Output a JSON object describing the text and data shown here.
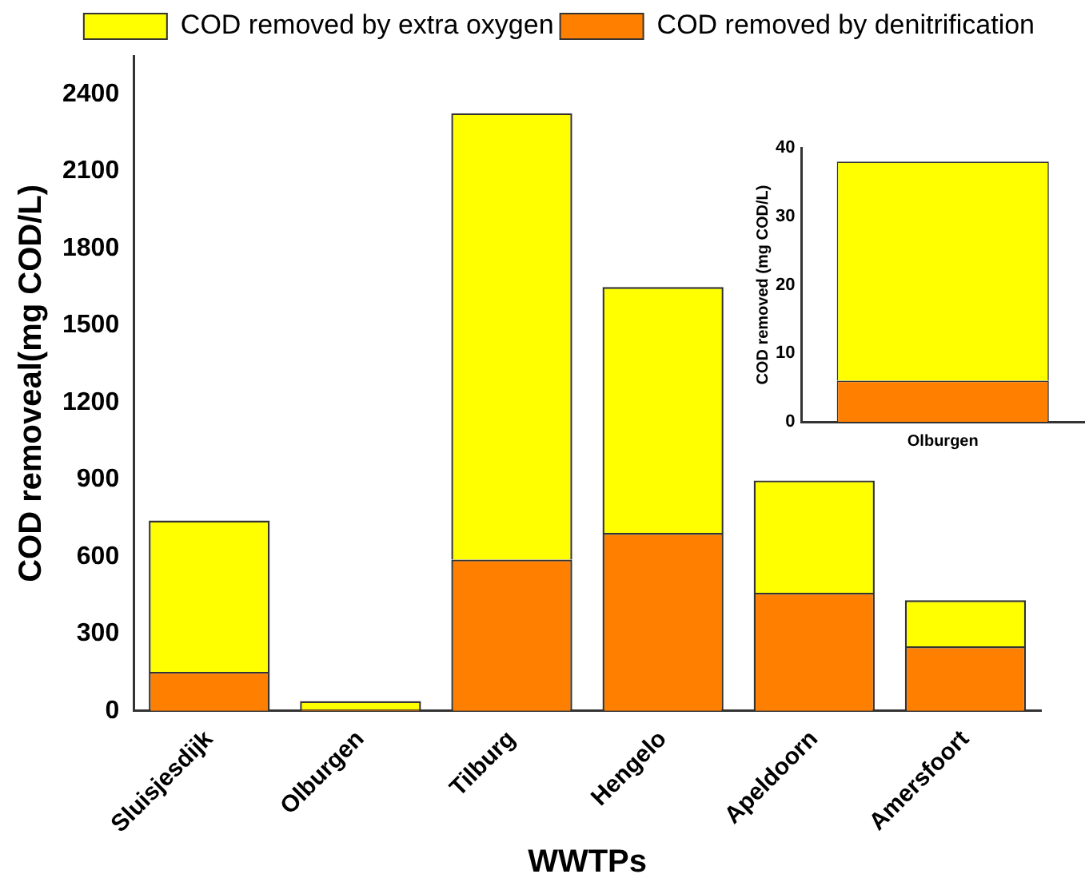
{
  "chart_data": [
    {
      "type": "bar",
      "xlabel": "WWTPs",
      "ylabel": "COD removeal(mg COD/L)",
      "categories": [
        "Sluisjesdijk",
        "Olburgen",
        "Tilburg",
        "Hengelo",
        "Apeldoorn",
        "Amersfoort"
      ],
      "stacked": true,
      "ylim": [
        0,
        2550
      ],
      "yticks": [
        0,
        300,
        600,
        900,
        1200,
        1500,
        1800,
        2100,
        2400
      ],
      "legend": "top right",
      "series": [
        {
          "name": "COD removed by denitrification",
          "color": "#ff8000",
          "values": [
            152,
            6,
            589,
            693,
            460,
            251
          ]
        },
        {
          "name": "COD removed by extra oxygen",
          "color": "#ffff00",
          "values": [
            589,
            32,
            1738,
            957,
            437,
            180
          ]
        }
      ]
    },
    {
      "type": "bar",
      "ylabel": "COD removed (mg COD/L)",
      "categories": [
        "Olburgen"
      ],
      "stacked": true,
      "ylim": [
        0,
        40
      ],
      "yticks": [
        0,
        10,
        20,
        30,
        40
      ],
      "series": [
        {
          "color": "#ff8000",
          "values": [
            6
          ]
        },
        {
          "color": "#ffff00",
          "values": [
            32
          ]
        }
      ]
    }
  ]
}
